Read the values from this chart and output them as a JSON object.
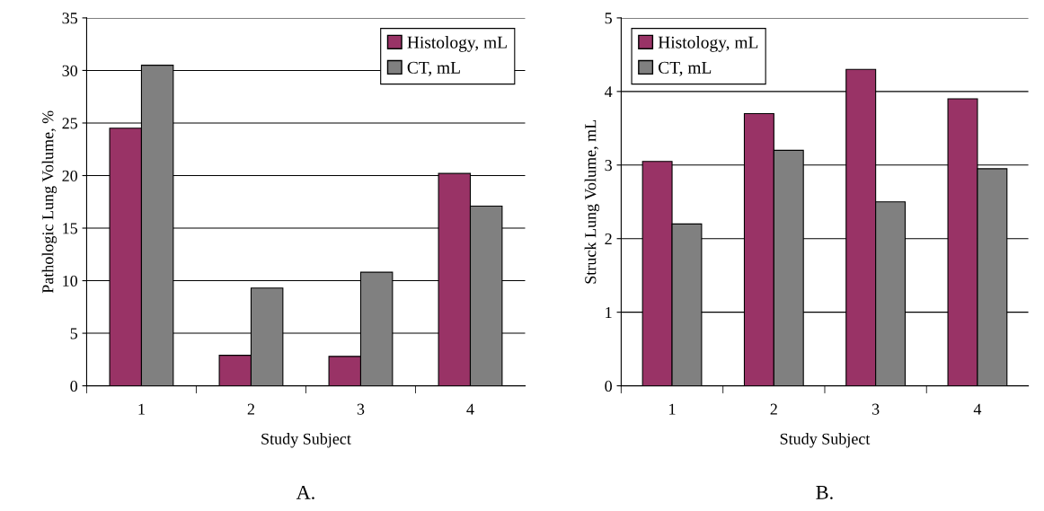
{
  "chart_data": [
    {
      "type": "bar",
      "xlabel": "Study Subject",
      "ylabel": "Pathologic Lung Volume, %",
      "categories": [
        "1",
        "2",
        "3",
        "4"
      ],
      "series": [
        {
          "name": "Histology, mL",
          "color": "#993366",
          "values": [
            24.5,
            2.9,
            2.8,
            20.2
          ]
        },
        {
          "name": "CT, mL",
          "color": "#808080",
          "values": [
            30.5,
            9.3,
            10.8,
            17.1
          ]
        }
      ],
      "ylim": [
        0,
        35
      ],
      "yticks": [
        0,
        5,
        10,
        15,
        20,
        25,
        30,
        35
      ],
      "grid": "y",
      "legend": "top right",
      "annotations": [
        "A."
      ]
    },
    {
      "type": "bar",
      "xlabel": "Study Subject",
      "ylabel": "Struck Lung Volume, mL",
      "categories": [
        "1",
        "2",
        "3",
        "4"
      ],
      "series": [
        {
          "name": "Histology, mL",
          "color": "#993366",
          "values": [
            3.05,
            3.7,
            4.3,
            3.9
          ]
        },
        {
          "name": "CT, mL",
          "color": "#808080",
          "values": [
            2.2,
            3.2,
            2.5,
            2.95
          ]
        }
      ],
      "ylim": [
        0,
        5
      ],
      "yticks": [
        0,
        1,
        2,
        3,
        4,
        5
      ],
      "grid": "y",
      "legend": "top left",
      "annotations": [
        "B."
      ]
    }
  ]
}
